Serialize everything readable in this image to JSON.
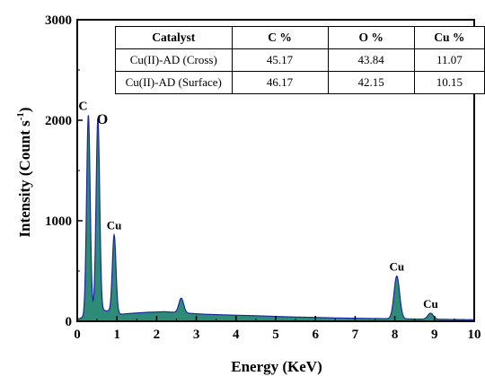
{
  "chart_data": {
    "type": "area",
    "xlabel": "Energy (KeV)",
    "ylabel_main": "Intensity (Count s",
    "ylabel_sup": "-1",
    "ylabel_tail": ")",
    "xlim": [
      0,
      10
    ],
    "ylim": [
      0,
      3000
    ],
    "x_ticks": [
      "0",
      "1",
      "2",
      "3",
      "4",
      "5",
      "6",
      "7",
      "8",
      "9",
      "10"
    ],
    "y_ticks": [
      "0",
      "1000",
      "2000",
      "3000"
    ],
    "fill_color": "#2e8b77",
    "line_color": "#1c2a9e",
    "baseline": [
      [
        0.0,
        20
      ],
      [
        0.15,
        40
      ],
      [
        0.35,
        90
      ],
      [
        0.6,
        110
      ],
      [
        0.85,
        100
      ],
      [
        1.1,
        70
      ],
      [
        1.4,
        80
      ],
      [
        1.8,
        90
      ],
      [
        2.2,
        95
      ],
      [
        2.4,
        90
      ],
      [
        2.8,
        80
      ],
      [
        3.2,
        70
      ],
      [
        3.6,
        65
      ],
      [
        4.0,
        60
      ],
      [
        4.5,
        55
      ],
      [
        5.0,
        48
      ],
      [
        5.5,
        42
      ],
      [
        6.0,
        38
      ],
      [
        6.5,
        33
      ],
      [
        7.0,
        30
      ],
      [
        7.5,
        27
      ],
      [
        8.0,
        25
      ],
      [
        8.5,
        22
      ],
      [
        9.0,
        20
      ],
      [
        9.5,
        18
      ],
      [
        10.0,
        15
      ]
    ],
    "peaks": [
      {
        "label": "C",
        "x": 0.28,
        "y": 2050,
        "width": 0.045
      },
      {
        "label": "O",
        "x": 0.52,
        "y": 2020,
        "width": 0.045
      },
      {
        "label": "Cu",
        "x": 0.93,
        "y": 860,
        "width": 0.045
      },
      {
        "label": "",
        "x": 2.62,
        "y": 230,
        "width": 0.06
      },
      {
        "label": "Cu",
        "x": 8.05,
        "y": 450,
        "width": 0.07
      },
      {
        "label": "Cu",
        "x": 8.9,
        "y": 80,
        "width": 0.07
      }
    ],
    "table": {
      "headers": [
        "Catalyst",
        "C %",
        "O %",
        "Cu %"
      ],
      "rows": [
        [
          "Cu(II)-AD (Cross)",
          "45.17",
          "43.84",
          "11.07"
        ],
        [
          "Cu(II)-AD (Surface)",
          "46.17",
          "42.15",
          "10.15"
        ]
      ]
    }
  }
}
